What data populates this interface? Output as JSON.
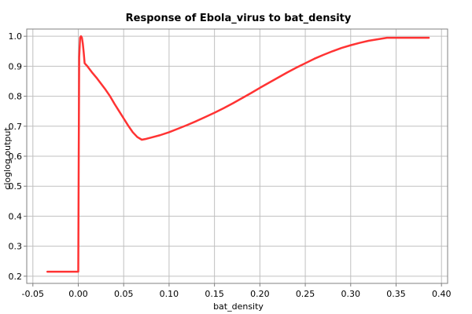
{
  "chart_data": {
    "type": "line",
    "title": "Response of Ebola_virus to bat_density",
    "xlabel": "bat_density",
    "ylabel": "cloglog output",
    "xlim": [
      -0.05,
      0.4
    ],
    "ylim": [
      0.2,
      1.0
    ],
    "xticks": [
      -0.05,
      0.0,
      0.05,
      0.1,
      0.15,
      0.2,
      0.25,
      0.3,
      0.35,
      0.4
    ],
    "xtick_labels": [
      "-0.05",
      "0.00",
      "0.05",
      "0.10",
      "0.15",
      "0.20",
      "0.25",
      "0.30",
      "0.35",
      "0.40"
    ],
    "yticks": [
      0.2,
      0.3,
      0.4,
      0.5,
      0.6,
      0.7,
      0.8,
      0.9,
      1.0
    ],
    "ytick_labels": [
      "0.2",
      "0.3",
      "0.4",
      "0.5",
      "0.6",
      "0.7",
      "0.8",
      "0.9",
      "1.0"
    ],
    "grid": true,
    "series": [
      {
        "color": "#ff3333",
        "x": [
          -0.034,
          0.0,
          0.0005,
          0.001,
          0.002,
          0.003,
          0.004,
          0.005,
          0.006,
          0.007,
          0.01,
          0.015,
          0.02,
          0.025,
          0.03,
          0.035,
          0.04,
          0.045,
          0.05,
          0.055,
          0.06,
          0.065,
          0.07,
          0.075,
          0.08,
          0.09,
          0.1,
          0.11,
          0.12,
          0.13,
          0.14,
          0.15,
          0.16,
          0.17,
          0.18,
          0.19,
          0.2,
          0.21,
          0.22,
          0.23,
          0.24,
          0.25,
          0.26,
          0.27,
          0.28,
          0.29,
          0.3,
          0.31,
          0.32,
          0.33,
          0.34,
          0.35,
          0.36,
          0.37,
          0.38,
          0.386
        ],
        "y": [
          0.215,
          0.215,
          0.6,
          0.93,
          0.995,
          1.0,
          0.995,
          0.975,
          0.945,
          0.91,
          0.9,
          0.88,
          0.862,
          0.842,
          0.822,
          0.8,
          0.774,
          0.75,
          0.726,
          0.702,
          0.68,
          0.664,
          0.655,
          0.658,
          0.662,
          0.67,
          0.68,
          0.692,
          0.704,
          0.717,
          0.731,
          0.745,
          0.76,
          0.776,
          0.793,
          0.81,
          0.828,
          0.845,
          0.862,
          0.879,
          0.895,
          0.91,
          0.925,
          0.938,
          0.95,
          0.961,
          0.97,
          0.978,
          0.985,
          0.99,
          0.995,
          0.995,
          0.995,
          0.995,
          0.995,
          0.995
        ]
      }
    ]
  }
}
